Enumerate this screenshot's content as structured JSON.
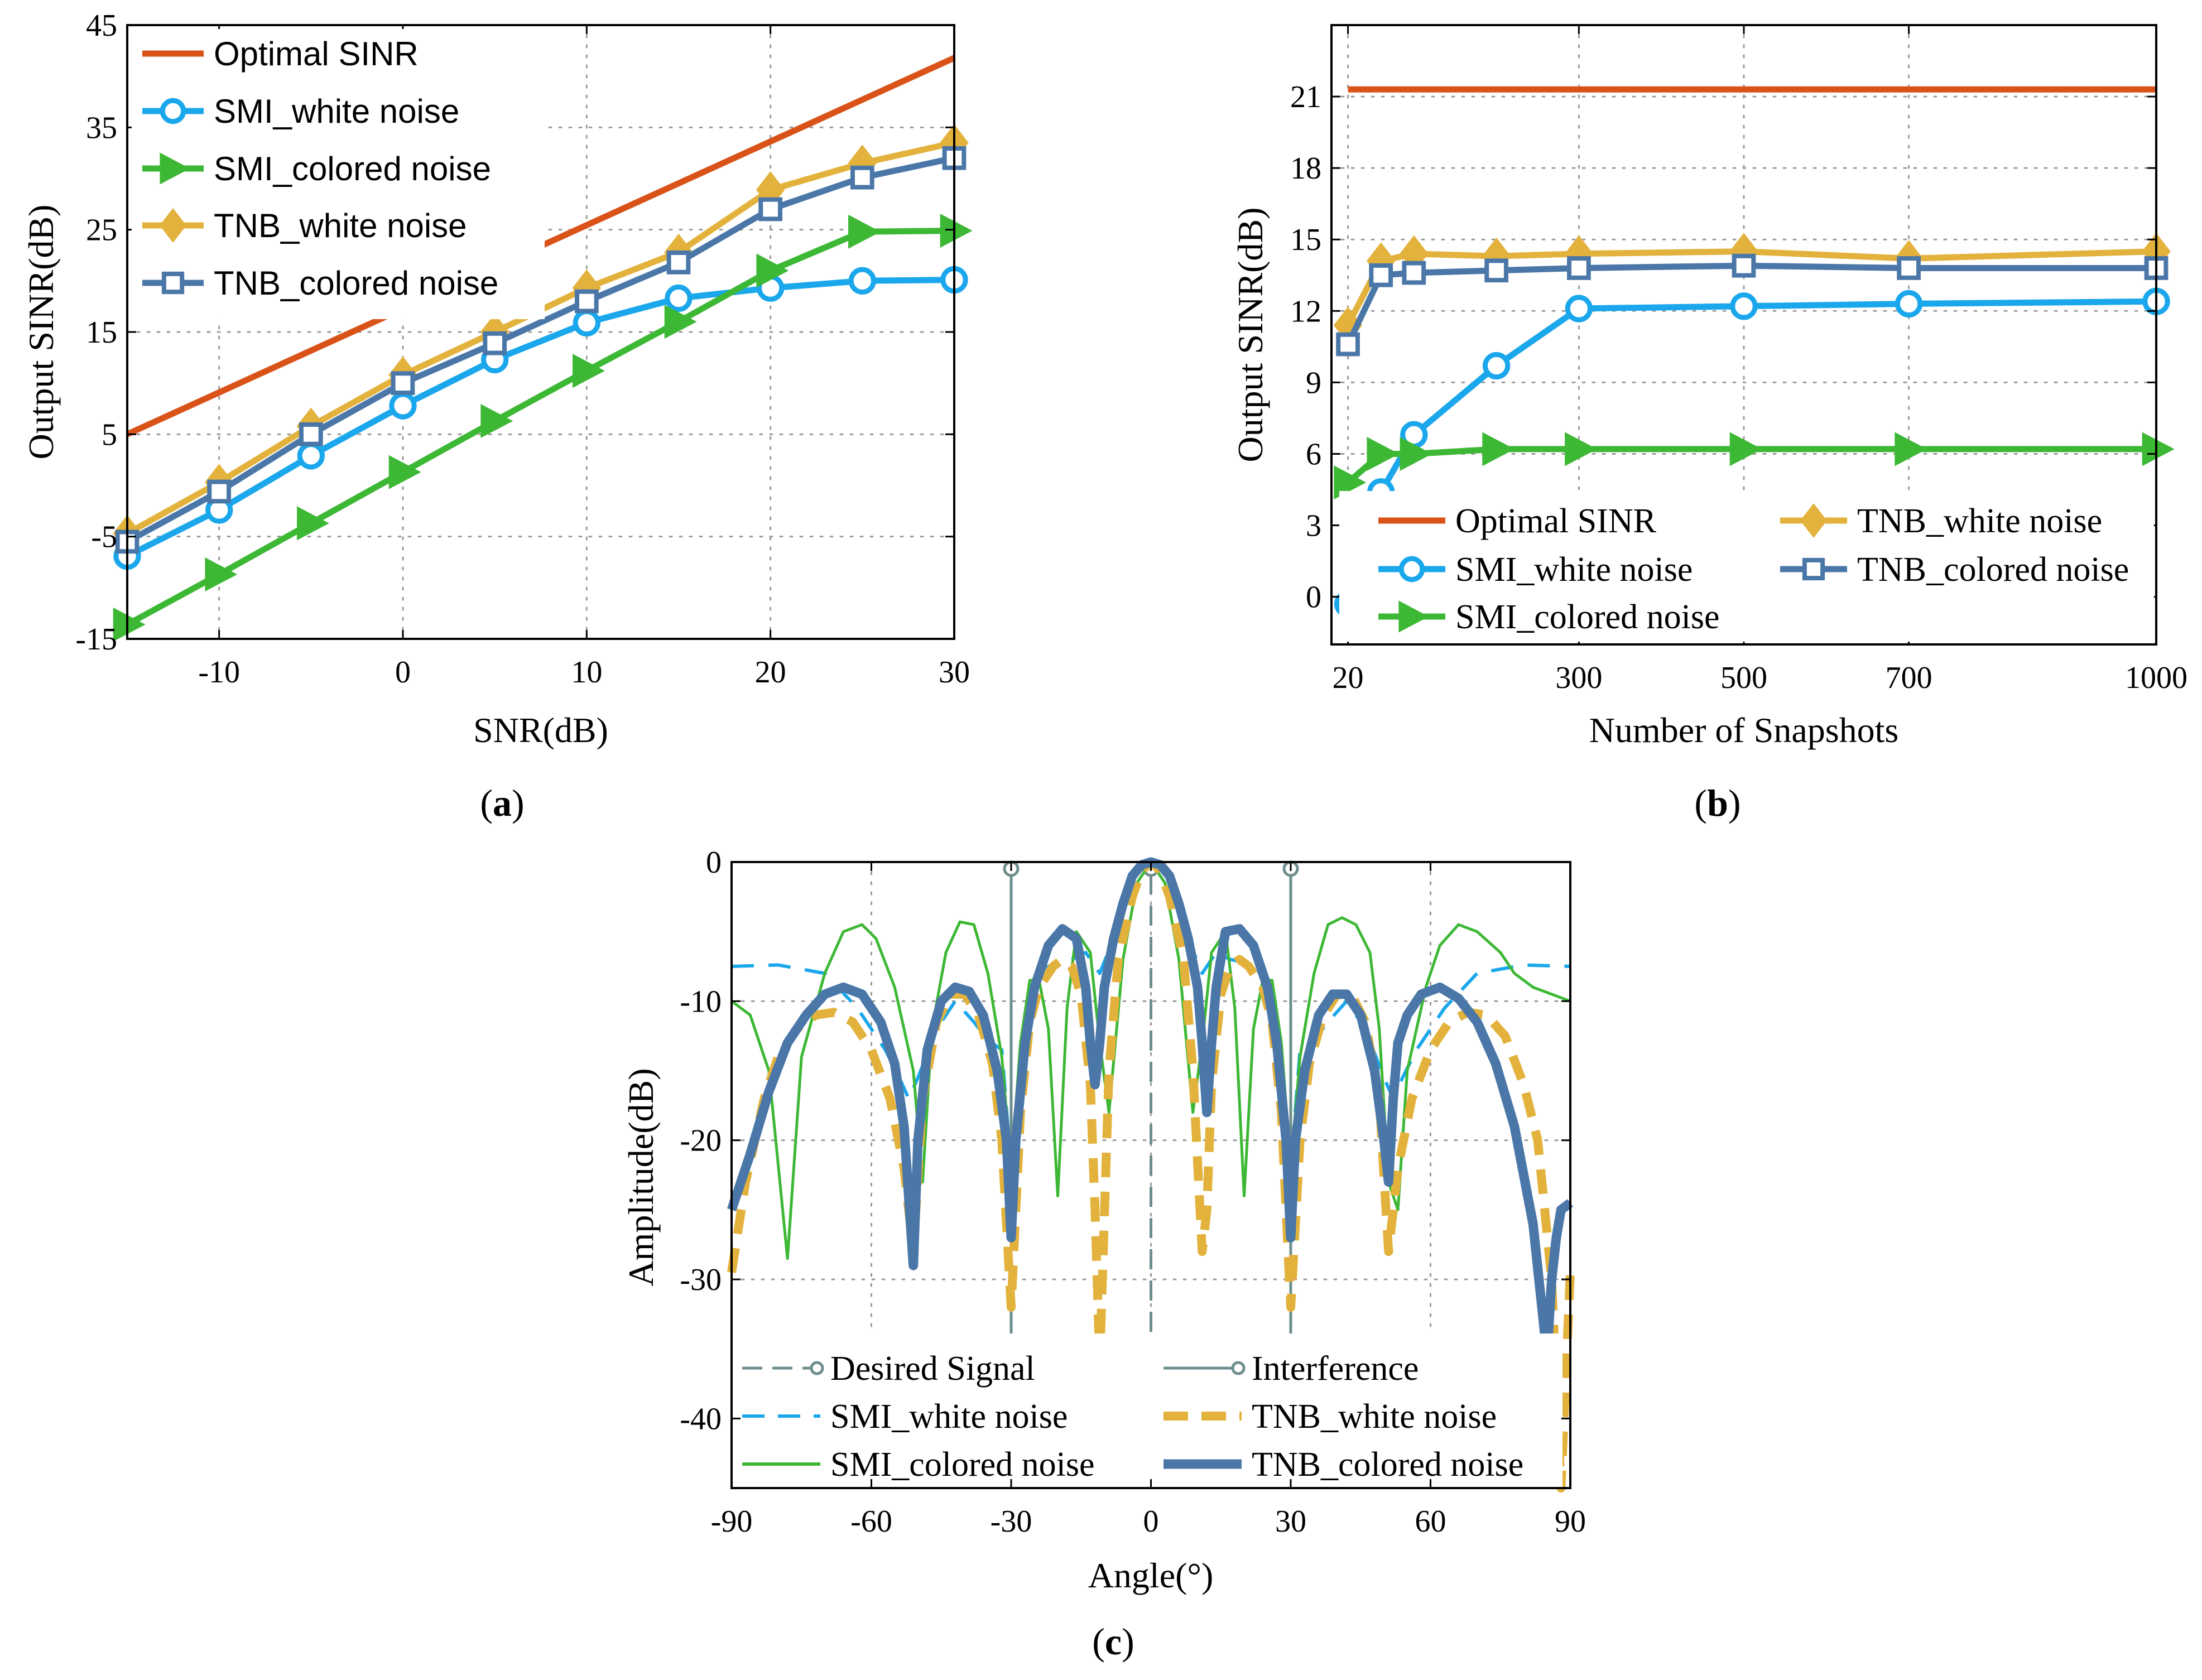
{
  "colors": {
    "optimal": "#D95319",
    "smi_white": "#1AA7EC",
    "smi_colored": "#3DB835",
    "tnb_white": "#E3B23C",
    "tnb_colored": "#4A77A8",
    "desired": "#6E8E8E",
    "interference": "#6E8E8E"
  },
  "chart_data": [
    {
      "type": "line",
      "panel_label": "a",
      "xlabel": "SNR(dB)",
      "ylabel": "Output SINR(dB)",
      "xlim": [
        -15,
        30
      ],
      "ylim": [
        -15,
        45
      ],
      "xticks": [
        -10,
        0,
        10,
        20,
        30
      ],
      "xtick_labels": [
        "-10",
        "0",
        "10",
        "20",
        "30"
      ],
      "yticks": [
        -15,
        -5,
        5,
        15,
        25,
        35,
        45
      ],
      "ytick_labels": [
        "-15",
        "-5",
        "5",
        "15",
        "25",
        "35",
        "45"
      ],
      "grid": true,
      "legend_position": "top-left",
      "series": [
        {
          "key": "optimal",
          "name": "Optimal SINR",
          "marker": "none",
          "x": [
            -15,
            30
          ],
          "values": [
            5,
            41.8
          ]
        },
        {
          "key": "smi_white",
          "name": "SMI_white noise",
          "marker": "circle",
          "x": [
            -15,
            -10,
            -5,
            0,
            5,
            10,
            15,
            20,
            25,
            30
          ],
          "values": [
            -6.9,
            -2.4,
            2.9,
            7.8,
            12.3,
            15.9,
            18.3,
            19.3,
            20.0,
            20.1
          ]
        },
        {
          "key": "smi_colored",
          "name": "SMI_colored noise",
          "marker": "triangle-right",
          "x": [
            -15,
            -10,
            -5,
            0,
            5,
            10,
            15,
            20,
            25,
            30
          ],
          "values": [
            -13.6,
            -8.7,
            -3.7,
            1.3,
            6.3,
            11.2,
            16.0,
            21.0,
            24.8,
            24.9
          ]
        },
        {
          "key": "tnb_white",
          "name": "TNB_white noise",
          "marker": "diamond",
          "x": [
            -15,
            -10,
            -5,
            0,
            5,
            10,
            15,
            20,
            25,
            30
          ],
          "values": [
            -4.7,
            0.3,
            5.8,
            10.8,
            15.0,
            19.3,
            22.8,
            28.9,
            31.5,
            33.5
          ]
        },
        {
          "key": "tnb_colored",
          "name": "TNB_colored noise",
          "marker": "square",
          "x": [
            -15,
            -10,
            -5,
            0,
            5,
            10,
            15,
            20,
            25,
            30
          ],
          "values": [
            -5.5,
            -0.6,
            5.0,
            10.0,
            13.9,
            18.0,
            21.8,
            27.0,
            30.1,
            32.0
          ]
        }
      ]
    },
    {
      "type": "line",
      "panel_label": "b",
      "xlabel": "Number of Snapshots",
      "ylabel": "Output SINR(dB)",
      "xlim": [
        0,
        1000
      ],
      "ylim": [
        -2,
        24
      ],
      "xticks": [
        20,
        300,
        500,
        700,
        1000
      ],
      "xtick_labels": [
        "20",
        "300",
        "500",
        "700",
        "1000"
      ],
      "yticks": [
        0,
        3,
        6,
        9,
        12,
        15,
        18,
        21
      ],
      "ytick_labels": [
        "0",
        "3",
        "6",
        "9",
        "12",
        "15",
        "18",
        "21"
      ],
      "grid": true,
      "legend_position": "bottom-right",
      "series": [
        {
          "key": "optimal",
          "name": "Optimal SINR",
          "marker": "none",
          "x": [
            20,
            1000
          ],
          "values": [
            21.3,
            21.3
          ]
        },
        {
          "key": "smi_white",
          "name": "SMI_white noise",
          "marker": "circle",
          "x": [
            20,
            60,
            100,
            200,
            300,
            500,
            700,
            1000
          ],
          "values": [
            -0.3,
            4.4,
            6.8,
            9.7,
            12.1,
            12.2,
            12.3,
            12.4
          ]
        },
        {
          "key": "smi_colored",
          "name": "SMI_colored noise",
          "marker": "triangle-right",
          "x": [
            20,
            60,
            100,
            200,
            300,
            500,
            700,
            1000
          ],
          "values": [
            4.8,
            6.0,
            6.0,
            6.2,
            6.2,
            6.2,
            6.2,
            6.2
          ]
        },
        {
          "key": "tnb_white",
          "name": "TNB_white noise",
          "marker": "diamond",
          "x": [
            20,
            60,
            100,
            200,
            300,
            500,
            700,
            1000
          ],
          "values": [
            11.4,
            14.1,
            14.4,
            14.3,
            14.4,
            14.5,
            14.2,
            14.5
          ]
        },
        {
          "key": "tnb_colored",
          "name": "TNB_colored noise",
          "marker": "square",
          "x": [
            20,
            60,
            100,
            200,
            300,
            500,
            700,
            1000
          ],
          "values": [
            10.6,
            13.5,
            13.6,
            13.7,
            13.8,
            13.9,
            13.8,
            13.8
          ]
        }
      ]
    },
    {
      "type": "line",
      "panel_label": "c",
      "xlabel": "Angle(°)",
      "ylabel": "Amplitude(dB)",
      "xlim": [
        -90,
        90
      ],
      "ylim": [
        -45,
        0
      ],
      "xticks": [
        -90,
        -60,
        -30,
        0,
        30,
        60,
        90
      ],
      "xtick_labels": [
        "-90",
        "-60",
        "-30",
        "0",
        "30",
        "60",
        "90"
      ],
      "yticks": [
        -40,
        -30,
        -20,
        -10,
        0
      ],
      "ytick_labels": [
        "-40",
        "-30",
        "-20",
        "-10",
        "0"
      ],
      "grid": true,
      "legend_position": "bottom",
      "stems": [
        {
          "key": "desired",
          "name": "Desired Signal",
          "style": "dashed",
          "x": [
            0
          ],
          "values": [
            0
          ]
        },
        {
          "key": "interference",
          "name": "Interference",
          "style": "solid",
          "x": [
            -30,
            30
          ],
          "values": [
            0,
            0
          ]
        }
      ],
      "series": [
        {
          "key": "smi_white",
          "name": "SMI_white noise",
          "style": "dashed",
          "x": [
            -90,
            -80,
            -70,
            -63,
            -57,
            -54,
            -52,
            -50,
            -46,
            -42,
            -38,
            -35,
            -32,
            -30,
            -28,
            -26,
            -24,
            -22,
            -20,
            -17,
            -14,
            -11,
            -8,
            -5,
            -3,
            0,
            3,
            5,
            8,
            11,
            14,
            17,
            20,
            22,
            24,
            26,
            28,
            30,
            32,
            35,
            38,
            42,
            46,
            50,
            52,
            54,
            57,
            63,
            70,
            80,
            90
          ],
          "values": [
            -7.5,
            -7.4,
            -8.0,
            -10.5,
            -13.5,
            -15.5,
            -17.0,
            -15.5,
            -12.0,
            -10.0,
            -11.5,
            -12.8,
            -13.5,
            -22.0,
            -15.0,
            -10.0,
            -8.2,
            -7.5,
            -7.2,
            -7.0,
            -6.5,
            -8.0,
            -5.5,
            -1.5,
            -0.4,
            0,
            -0.4,
            -1.5,
            -5.5,
            -8.0,
            -6.5,
            -7.0,
            -7.2,
            -7.5,
            -8.2,
            -10.0,
            -15.0,
            -22.0,
            -13.5,
            -12.8,
            -11.5,
            -10.0,
            -12.0,
            -15.5,
            -17.0,
            -15.5,
            -13.5,
            -10.5,
            -8.0,
            -7.4,
            -7.5
          ]
        },
        {
          "key": "smi_colored",
          "name": "SMI_colored noise",
          "x": [
            -90,
            -86,
            -82,
            -78,
            -75,
            -70,
            -66,
            -62,
            -59,
            -55,
            -51,
            -49,
            -47,
            -44,
            -41,
            -38,
            -35,
            -32,
            -30,
            -28,
            -26,
            -24,
            -22,
            -20,
            -18,
            -16,
            -13,
            -11,
            -9,
            -6,
            -3,
            0,
            3,
            6,
            9,
            11,
            13,
            16,
            18,
            20,
            22,
            24,
            26,
            28,
            30,
            32,
            35,
            38,
            41,
            44,
            47,
            49,
            51,
            53,
            55,
            59,
            62,
            66,
            70,
            75,
            78,
            82,
            86,
            90
          ],
          "values": [
            -10.0,
            -11.0,
            -15.0,
            -28.5,
            -14.0,
            -8.0,
            -5.0,
            -4.5,
            -5.5,
            -9.0,
            -15.0,
            -23.0,
            -12.0,
            -6.5,
            -4.3,
            -4.5,
            -8.0,
            -14.0,
            -22.0,
            -13.0,
            -8.5,
            -8.5,
            -12.0,
            -24.0,
            -10.5,
            -5.0,
            -6.5,
            -13.0,
            -18.0,
            -7.0,
            -1.5,
            0,
            -1.5,
            -7.0,
            -18.0,
            -13.0,
            -6.5,
            -5.0,
            -10.5,
            -24.0,
            -12.0,
            -8.5,
            -8.5,
            -13.0,
            -22.0,
            -14.0,
            -8.0,
            -4.5,
            -4.0,
            -4.5,
            -6.5,
            -12.0,
            -23.0,
            -25.0,
            -15.0,
            -9.0,
            -6.0,
            -4.5,
            -5.0,
            -6.5,
            -8.0,
            -9.0,
            -9.5,
            -10.0
          ]
        },
        {
          "key": "tnb_white",
          "name": "TNB_white noise",
          "style": "dashed",
          "x": [
            -90,
            -87,
            -83,
            -80,
            -76,
            -72,
            -68,
            -64,
            -60,
            -56,
            -53,
            -51,
            -49,
            -46,
            -43,
            -40,
            -37,
            -34,
            -32,
            -30,
            -28,
            -26,
            -24,
            -21,
            -19,
            -17,
            -15,
            -13,
            -12,
            -11,
            -9,
            -7,
            -4,
            -2,
            0,
            2,
            4,
            7,
            9,
            11,
            12,
            13,
            15,
            17,
            19,
            21,
            24,
            26,
            28,
            30,
            32,
            34,
            37,
            40,
            43,
            46,
            49,
            51,
            53,
            56,
            60,
            64,
            68,
            72,
            76,
            80,
            83,
            86,
            88,
            90
          ],
          "values": [
            -29.5,
            -23.0,
            -17.0,
            -14.0,
            -12.0,
            -11.0,
            -10.8,
            -11.5,
            -13.5,
            -17.0,
            -22.0,
            -28.0,
            -17.0,
            -11.5,
            -9.5,
            -9.5,
            -11.0,
            -14.5,
            -20.0,
            -32.0,
            -18.0,
            -11.5,
            -9.0,
            -7.5,
            -7.0,
            -7.5,
            -9.5,
            -16.0,
            -25.0,
            -36.0,
            -15.0,
            -7.0,
            -2.5,
            -0.6,
            0,
            -0.6,
            -2.5,
            -7.0,
            -15.0,
            -28.0,
            -25.0,
            -16.0,
            -9.5,
            -7.5,
            -7.0,
            -7.5,
            -9.0,
            -11.5,
            -18.0,
            -32.0,
            -20.0,
            -14.5,
            -11.0,
            -9.5,
            -9.5,
            -11.5,
            -17.0,
            -28.0,
            -22.0,
            -17.0,
            -13.5,
            -11.5,
            -10.8,
            -11.0,
            -12.5,
            -16.0,
            -20.0,
            -30.0,
            -45.0,
            -29.5
          ]
        },
        {
          "key": "tnb_colored",
          "name": "TNB_colored noise",
          "style": "thick",
          "x": [
            -90,
            -86,
            -82,
            -78,
            -74,
            -70,
            -66,
            -62,
            -58,
            -55,
            -53,
            -52,
            -51,
            -50,
            -48,
            -45,
            -42,
            -39,
            -36,
            -33,
            -31,
            -30,
            -29,
            -27,
            -25,
            -22,
            -19,
            -16,
            -14,
            -13,
            -12,
            -11,
            -10,
            -8,
            -6,
            -4,
            -2,
            0,
            2,
            4,
            6,
            8,
            10,
            11,
            12,
            13,
            14,
            16,
            19,
            22,
            25,
            27,
            29,
            30,
            31,
            33,
            36,
            39,
            42,
            45,
            48,
            50,
            51,
            52,
            53,
            55,
            58,
            62,
            66,
            70,
            74,
            78,
            82,
            85,
            86,
            87,
            88,
            90
          ],
          "values": [
            -25.0,
            -21.0,
            -16.5,
            -13.0,
            -11.0,
            -9.5,
            -9.0,
            -9.5,
            -11.5,
            -14.5,
            -19.0,
            -24.0,
            -29.0,
            -20.0,
            -13.5,
            -10.0,
            -9.0,
            -9.3,
            -11.0,
            -15.0,
            -20.0,
            -27.0,
            -20.0,
            -13.0,
            -9.0,
            -6.0,
            -4.8,
            -5.5,
            -9.0,
            -13.0,
            -16.0,
            -13.0,
            -9.0,
            -5.5,
            -3.0,
            -1.0,
            -0.2,
            0,
            -0.2,
            -1.0,
            -3.0,
            -5.5,
            -9.0,
            -13.0,
            -18.0,
            -13.0,
            -9.0,
            -5.0,
            -4.8,
            -6.0,
            -9.0,
            -13.0,
            -20.0,
            -27.0,
            -20.0,
            -15.0,
            -11.0,
            -9.5,
            -9.5,
            -11.0,
            -15.0,
            -20.0,
            -23.0,
            -17.0,
            -13.0,
            -11.0,
            -9.5,
            -9.0,
            -9.8,
            -11.5,
            -14.5,
            -19.0,
            -26.0,
            -35.5,
            -30.0,
            -27.0,
            -25.0,
            -24.5
          ]
        }
      ]
    }
  ]
}
